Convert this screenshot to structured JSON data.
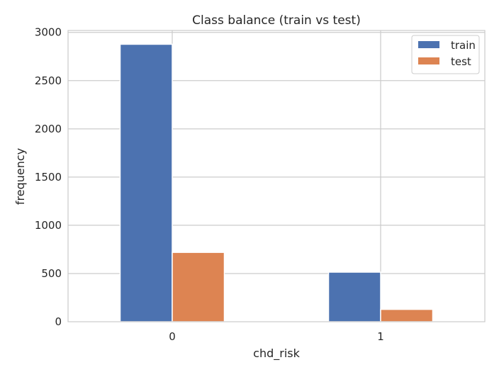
{
  "chart_data": {
    "type": "bar",
    "title": "Class balance (train vs test)",
    "xlabel": "chd_risk",
    "ylabel": "frequency",
    "categories": [
      "0",
      "1"
    ],
    "series": [
      {
        "name": "train",
        "values": [
          2877,
          514
        ],
        "color": "#4c72b0"
      },
      {
        "name": "test",
        "values": [
          719,
          128
        ],
        "color": "#dd8452"
      }
    ],
    "ylim": [
      0,
      3020
    ],
    "yticks": [
      0,
      500,
      1000,
      1500,
      2000,
      2500,
      3000
    ],
    "grid": true,
    "legend_position": "top-right",
    "colors": {
      "grid": "#cccccc",
      "axes_edge": "#cccccc",
      "text": "#262626",
      "background": "#ffffff"
    }
  }
}
